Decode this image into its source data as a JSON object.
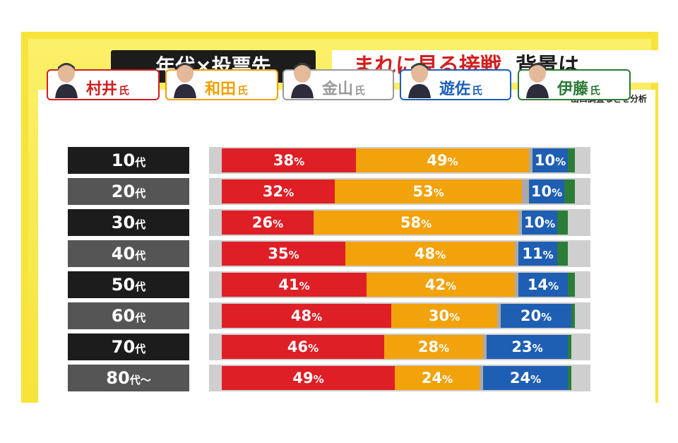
{
  "header": {
    "title_left": "年代×投票先",
    "title_red": "まれに見る接戦",
    "title_black": "背景は",
    "note": "出口調査などを分析"
  },
  "candidates": [
    {
      "name": "村井",
      "suffix": "氏",
      "color": "#d11f1f"
    },
    {
      "name": "和田",
      "suffix": "氏",
      "color": "#f0a000"
    },
    {
      "name": "金山",
      "suffix": "氏",
      "color": "#9a9a9a"
    },
    {
      "name": "遊佐",
      "suffix": "氏",
      "color": "#1d5fb8"
    },
    {
      "name": "伊藤",
      "suffix": "氏",
      "color": "#2a7a35"
    }
  ],
  "chart_data": {
    "type": "bar",
    "orientation": "horizontal-stacked",
    "categories": [
      "10代",
      "20代",
      "30代",
      "40代",
      "50代",
      "60代",
      "70代",
      "80代〜"
    ],
    "series": [
      {
        "name": "村井氏",
        "color": "#df1f26",
        "values": [
          38,
          32,
          26,
          35,
          41,
          48,
          46,
          49
        ]
      },
      {
        "name": "和田氏",
        "color": "#f2a20b",
        "values": [
          49,
          53,
          58,
          48,
          42,
          30,
          28,
          24
        ]
      },
      {
        "name": "金山氏",
        "color": "#a9a9a9",
        "values": [
          1,
          2,
          1,
          1,
          1,
          1,
          1,
          1
        ]
      },
      {
        "name": "遊佐氏",
        "color": "#1e5fb4",
        "values": [
          10,
          10,
          10,
          11,
          14,
          20,
          23,
          24
        ]
      },
      {
        "name": "伊藤氏",
        "color": "#2b7d38",
        "values": [
          2,
          3,
          3,
          3,
          2,
          1,
          1,
          1
        ]
      }
    ],
    "labeled_series": [
      "村井氏",
      "和田氏",
      "遊佐氏"
    ],
    "value_suffix": "%",
    "xlim": [
      0,
      100
    ],
    "label_row_colors": [
      "#1c1c1c",
      "#555555"
    ]
  }
}
